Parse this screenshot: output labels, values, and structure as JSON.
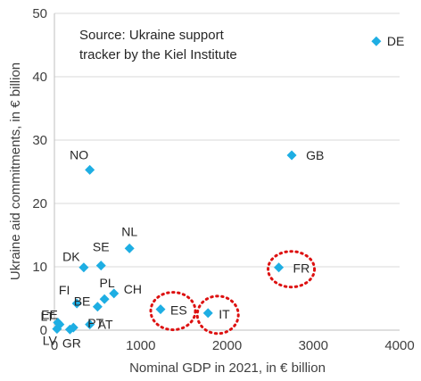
{
  "chart_data": {
    "type": "scatter",
    "title": "",
    "xlabel": "Nominal GDP in 2021, in € billion",
    "ylabel": "Ukraine aid commitments, in € billion",
    "xlim": [
      0,
      4000
    ],
    "ylim": [
      0,
      50
    ],
    "xticks": [
      "0",
      "1000",
      "2000",
      "3000",
      "4000"
    ],
    "yticks": [
      "0",
      "10",
      "20",
      "30",
      "40",
      "50"
    ],
    "grid": "horizontal",
    "marker_color": "#1eaee3",
    "highlight_color": "#dd1111",
    "annotation": [
      "Source: Ukraine support",
      "tracker by the Kiel Institute"
    ],
    "points": [
      {
        "label": "DE",
        "x": 3730,
        "y": 45.6
      },
      {
        "label": "GB",
        "x": 2750,
        "y": 27.6
      },
      {
        "label": "NO",
        "x": 410,
        "y": 25.3
      },
      {
        "label": "NL",
        "x": 870,
        "y": 12.9
      },
      {
        "label": "DK",
        "x": 340,
        "y": 9.9
      },
      {
        "label": "SE",
        "x": 540,
        "y": 10.2
      },
      {
        "label": "FR",
        "x": 2600,
        "y": 9.9
      },
      {
        "label": "PL",
        "x": 580,
        "y": 4.9
      },
      {
        "label": "CH",
        "x": 690,
        "y": 5.8
      },
      {
        "label": "BE",
        "x": 500,
        "y": 3.7
      },
      {
        "label": "FI",
        "x": 260,
        "y": 4.2
      },
      {
        "label": "ES",
        "x": 1230,
        "y": 3.3
      },
      {
        "label": "IT",
        "x": 1780,
        "y": 2.7
      },
      {
        "label": "AT",
        "x": 410,
        "y": 0.9
      },
      {
        "label": "EE",
        "x": 40,
        "y": 1.2
      },
      {
        "label": "LT",
        "x": 60,
        "y": 0.9
      },
      {
        "label": "PT",
        "x": 220,
        "y": 0.4
      },
      {
        "label": "LV",
        "x": 30,
        "y": 0.2
      },
      {
        "label": "GR",
        "x": 180,
        "y": 0.1
      }
    ],
    "highlighted": [
      "FR",
      "ES",
      "IT"
    ]
  }
}
